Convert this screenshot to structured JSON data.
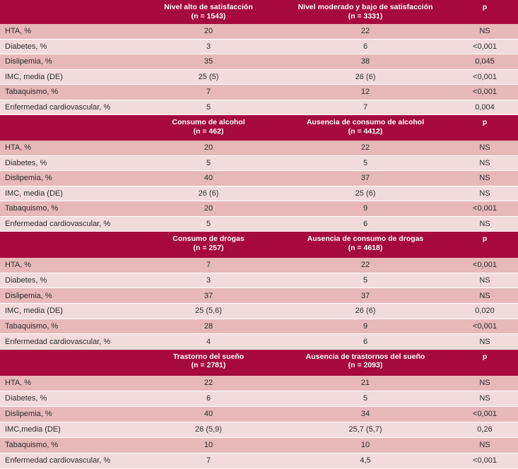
{
  "colors": {
    "header": "#a6093d",
    "row_dark": "#e6b8b7",
    "row_light": "#f2dcdb"
  },
  "sections": [
    {
      "columns": [
        {
          "title": "Nivel alto de satisfacción",
          "n": "(n = 1543)"
        },
        {
          "title": "Nivel moderado y bajo de satisfacción",
          "n": "(n = 3331)"
        },
        {
          "title": "p"
        }
      ],
      "rows": [
        [
          "HTA, %",
          "20",
          "22",
          "NS"
        ],
        [
          "Diabetes, %",
          "3",
          "6",
          "<0,001"
        ],
        [
          "Dislipemia, %",
          "35",
          "38",
          "0,045"
        ],
        [
          "IMC, media (DE)",
          "25 (5)",
          "26 (6)",
          "<0,001"
        ],
        [
          "Tabaquismo, %",
          "7",
          "12",
          "<0,001"
        ],
        [
          "Enfermedad cardiovascular, %",
          "5",
          "7",
          "0,004"
        ]
      ]
    },
    {
      "columns": [
        {
          "title": "Consumo de alcohol",
          "n": "(n = 462)"
        },
        {
          "title": "Ausencia de consumo de alcohol",
          "n": "(n = 4412)"
        },
        {
          "title": "p"
        }
      ],
      "rows": [
        [
          "HTA, %",
          "20",
          "22",
          "NS"
        ],
        [
          "Diabetes, %",
          "5",
          "5",
          "NS"
        ],
        [
          "Dislipemia, %",
          "40",
          "37",
          "NS"
        ],
        [
          "IMC, media (DE)",
          "26 (6)",
          "25 (6)",
          "NS"
        ],
        [
          "Tabaquismo, %",
          "20",
          "9",
          "<0,001"
        ],
        [
          "Enfermedad cardiovascular, %",
          "5",
          "6",
          "NS"
        ]
      ]
    },
    {
      "columns": [
        {
          "title": "Consumo de drogas",
          "n": "(n = 257)"
        },
        {
          "title": "Ausencia de consumo de drogas",
          "n": "(n = 4618)"
        },
        {
          "title": "p"
        }
      ],
      "rows": [
        [
          "HTA, %",
          "7",
          "22",
          "<0,001"
        ],
        [
          "Diabetes, %",
          "3",
          "5",
          "NS"
        ],
        [
          "Dislipemia, %",
          "37",
          "37",
          "NS"
        ],
        [
          "IMC, media (DE)",
          "25 (5,6)",
          "26 (6)",
          "0,020"
        ],
        [
          "Tabaquismo, %",
          "28",
          "9",
          "<0,001"
        ],
        [
          "Enfermedad cardiovascular, %",
          "4",
          "6",
          "NS"
        ]
      ]
    },
    {
      "columns": [
        {
          "title": "Trastorno del sueño",
          "n": "(n = 2781)"
        },
        {
          "title": "Ausencia de trastornos del sueño",
          "n": "(n = 2093)"
        },
        {
          "title": "p"
        }
      ],
      "rows": [
        [
          "HTA, %",
          "22",
          "21",
          "NS"
        ],
        [
          "Diabetes, %",
          "6",
          "5",
          "NS"
        ],
        [
          "Dislipemia, %",
          "40",
          "34",
          "<0,001"
        ],
        [
          "IMC,media (DE)",
          "26 (5,9)",
          "25,7 (5,7)",
          "0,26"
        ],
        [
          "Tabaquismo, %",
          "10",
          "10",
          "NS"
        ],
        [
          "Enfermedad cardiovascular, %",
          "7",
          "4,5",
          "<0,001"
        ]
      ]
    }
  ]
}
